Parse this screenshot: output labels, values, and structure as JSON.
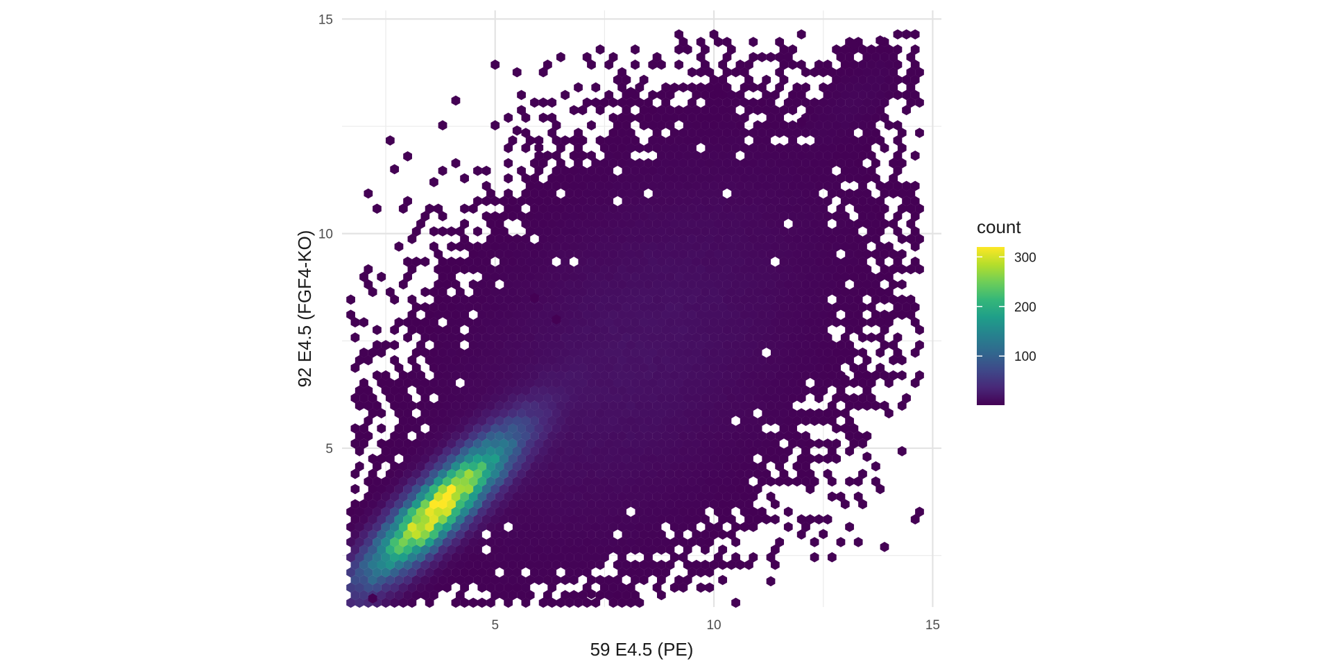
{
  "chart_data": {
    "type": "hexbin",
    "title": "",
    "xlabel": "59 E4.5 (PE)",
    "ylabel": "92 E4.5 (FGF4-KO)",
    "xlim": [
      1.5,
      15.2
    ],
    "ylim": [
      1.3,
      15.2
    ],
    "x_ticks": [
      5,
      10,
      15
    ],
    "y_ticks": [
      5,
      10,
      15
    ],
    "x_tick_labels": [
      "5",
      "10",
      "15"
    ],
    "y_tick_labels": [
      "5",
      "10",
      "15"
    ],
    "grid": true,
    "theme": "minimal",
    "hex_binwidth": 0.2,
    "colormap": "viridis",
    "colormap_stops": [
      "#440154",
      "#482878",
      "#3e4989",
      "#31688e",
      "#26828e",
      "#1f9e89",
      "#35b779",
      "#6ece58",
      "#b5de2b",
      "#fde725"
    ],
    "legend": {
      "title": "count",
      "position": "right",
      "range": [
        1,
        320
      ],
      "ticks": [
        100,
        200,
        300
      ],
      "tick_labels": [
        "100",
        "200",
        "300"
      ]
    },
    "density_components": [
      {
        "name": "main-diagonal",
        "center": [
          3.7,
          3.6
        ],
        "sd_major": 1.45,
        "sd_minor": 0.38,
        "angle_deg": 45,
        "peak_count": 320
      },
      {
        "name": "diffuse-cloud",
        "center": [
          8.2,
          7.2
        ],
        "sd_major": 3.2,
        "sd_minor": 2.0,
        "angle_deg": 50,
        "peak_count": 14
      },
      {
        "name": "upper-tail",
        "center": [
          13.3,
          13.2
        ],
        "sd_major": 0.9,
        "sd_minor": 0.4,
        "angle_deg": 45,
        "peak_count": 4
      }
    ],
    "outlier_points": [
      [
        4.1,
        13.1
      ],
      [
        5.5,
        12.4
      ],
      [
        6.0,
        12.0
      ],
      [
        3.6,
        11.2
      ],
      [
        2.7,
        11.5
      ],
      [
        3.0,
        11.8
      ],
      [
        12.0,
        12.6
      ],
      [
        13.2,
        14.4
      ],
      [
        13.8,
        14.5
      ],
      [
        9.1,
        13.4
      ],
      [
        10.1,
        13.3
      ],
      [
        8.1,
        13.3
      ],
      [
        14.0,
        8.0
      ],
      [
        13.9,
        2.7
      ],
      [
        12.5,
        3.0
      ],
      [
        7.2,
        1.6
      ],
      [
        11.3,
        1.9
      ],
      [
        13.5,
        4.8
      ],
      [
        2.2,
        1.5
      ],
      [
        5.9,
        8.5
      ],
      [
        6.4,
        8.0
      ],
      [
        13.0,
        6.6
      ]
    ]
  }
}
